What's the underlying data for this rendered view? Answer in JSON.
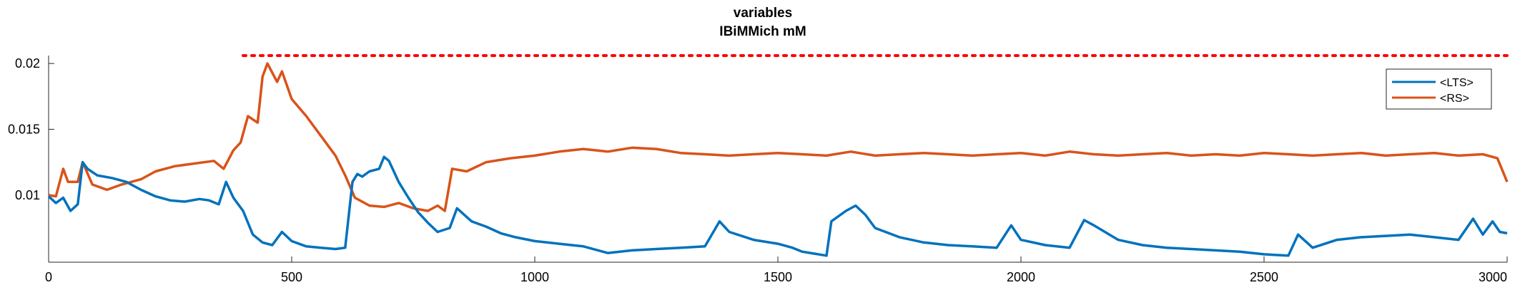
{
  "chart_data": {
    "type": "line",
    "title": "variables",
    "subtitle": "IBiMMich mM",
    "xlabel": "",
    "ylabel": "",
    "xlim": [
      0,
      3000
    ],
    "ylim": [
      0.0049,
      0.0206
    ],
    "xticks": [
      0,
      500,
      1000,
      1500,
      2000,
      2500,
      3000
    ],
    "xtick_labels": [
      "0",
      "500",
      "1000",
      "1500",
      "2000",
      "2500",
      "3000"
    ],
    "yticks": [
      0.01,
      0.015,
      0.02
    ],
    "ytick_labels": [
      "0.01",
      "0.015",
      "0.02"
    ],
    "grid": false,
    "legend_position": "top-right",
    "series": [
      {
        "name": "<LTS>",
        "color": "#0072BD",
        "x": [
          0,
          15,
          30,
          45,
          60,
          70,
          80,
          100,
          130,
          160,
          190,
          220,
          250,
          280,
          310,
          330,
          350,
          365,
          380,
          400,
          420,
          440,
          460,
          480,
          500,
          530,
          560,
          590,
          610,
          625,
          635,
          645,
          660,
          680,
          690,
          700,
          710,
          720,
          740,
          760,
          780,
          800,
          825,
          840,
          870,
          900,
          930,
          960,
          1000,
          1050,
          1100,
          1150,
          1200,
          1250,
          1300,
          1350,
          1380,
          1400,
          1450,
          1500,
          1530,
          1550,
          1600,
          1610,
          1640,
          1660,
          1680,
          1700,
          1750,
          1800,
          1850,
          1900,
          1950,
          1980,
          2000,
          2050,
          2100,
          2130,
          2150,
          2200,
          2250,
          2300,
          2350,
          2400,
          2450,
          2500,
          2550,
          2570,
          2600,
          2650,
          2700,
          2750,
          2800,
          2850,
          2900,
          2930,
          2950,
          2970,
          2985,
          3000
        ],
        "values": [
          0.0099,
          0.0094,
          0.0098,
          0.0088,
          0.0093,
          0.0125,
          0.012,
          0.0115,
          0.0113,
          0.011,
          0.0104,
          0.0099,
          0.0096,
          0.0095,
          0.0097,
          0.0096,
          0.0093,
          0.011,
          0.0098,
          0.0088,
          0.007,
          0.0064,
          0.0062,
          0.0072,
          0.0065,
          0.0061,
          0.006,
          0.0059,
          0.006,
          0.011,
          0.0116,
          0.0114,
          0.0118,
          0.012,
          0.0129,
          0.0126,
          0.0118,
          0.011,
          0.0098,
          0.0087,
          0.0079,
          0.0072,
          0.0075,
          0.009,
          0.008,
          0.0076,
          0.0071,
          0.0068,
          0.0065,
          0.0063,
          0.0061,
          0.0056,
          0.0058,
          0.0059,
          0.006,
          0.0061,
          0.008,
          0.0072,
          0.0066,
          0.0063,
          0.006,
          0.0057,
          0.0054,
          0.008,
          0.0088,
          0.0092,
          0.0085,
          0.0075,
          0.0068,
          0.0064,
          0.0062,
          0.0061,
          0.006,
          0.0077,
          0.0066,
          0.0062,
          0.006,
          0.0081,
          0.0077,
          0.0066,
          0.0062,
          0.006,
          0.0059,
          0.0058,
          0.0057,
          0.0055,
          0.0054,
          0.007,
          0.006,
          0.0066,
          0.0068,
          0.0069,
          0.007,
          0.0068,
          0.0066,
          0.0082,
          0.007,
          0.008,
          0.0072,
          0.0071
        ]
      },
      {
        "name": "<RS>",
        "color": "#D95319",
        "x": [
          0,
          15,
          30,
          40,
          60,
          70,
          90,
          120,
          150,
          190,
          220,
          260,
          300,
          340,
          360,
          380,
          395,
          410,
          430,
          440,
          450,
          460,
          470,
          480,
          500,
          530,
          560,
          590,
          610,
          630,
          660,
          690,
          720,
          750,
          780,
          800,
          815,
          830,
          860,
          900,
          950,
          1000,
          1050,
          1100,
          1150,
          1200,
          1250,
          1300,
          1350,
          1400,
          1450,
          1500,
          1550,
          1600,
          1650,
          1700,
          1750,
          1800,
          1850,
          1900,
          1950,
          2000,
          2050,
          2100,
          2150,
          2200,
          2250,
          2300,
          2350,
          2400,
          2450,
          2500,
          2550,
          2600,
          2650,
          2700,
          2750,
          2800,
          2850,
          2900,
          2950,
          2980,
          3000
        ],
        "values": [
          0.01,
          0.0099,
          0.012,
          0.011,
          0.011,
          0.0125,
          0.0108,
          0.0104,
          0.0108,
          0.0112,
          0.0118,
          0.0122,
          0.0124,
          0.0126,
          0.012,
          0.0134,
          0.014,
          0.016,
          0.0155,
          0.019,
          0.02,
          0.0193,
          0.0186,
          0.0194,
          0.0173,
          0.016,
          0.0145,
          0.013,
          0.0115,
          0.0098,
          0.0092,
          0.0091,
          0.0094,
          0.009,
          0.0088,
          0.0092,
          0.0088,
          0.012,
          0.0118,
          0.0125,
          0.0128,
          0.013,
          0.0133,
          0.0135,
          0.0133,
          0.0136,
          0.0135,
          0.0132,
          0.0131,
          0.013,
          0.0131,
          0.0132,
          0.0131,
          0.013,
          0.0133,
          0.013,
          0.0131,
          0.0132,
          0.0131,
          0.013,
          0.0131,
          0.0132,
          0.013,
          0.0133,
          0.0131,
          0.013,
          0.0131,
          0.0132,
          0.013,
          0.0131,
          0.013,
          0.0132,
          0.0131,
          0.013,
          0.0131,
          0.0132,
          0.013,
          0.0131,
          0.0132,
          0.013,
          0.0131,
          0.0128,
          0.011
        ]
      }
    ],
    "reference_line": {
      "style": "dotted",
      "color": "#FF0000",
      "x_start": 400,
      "x_end": 3000,
      "y": 0.0206
    }
  }
}
